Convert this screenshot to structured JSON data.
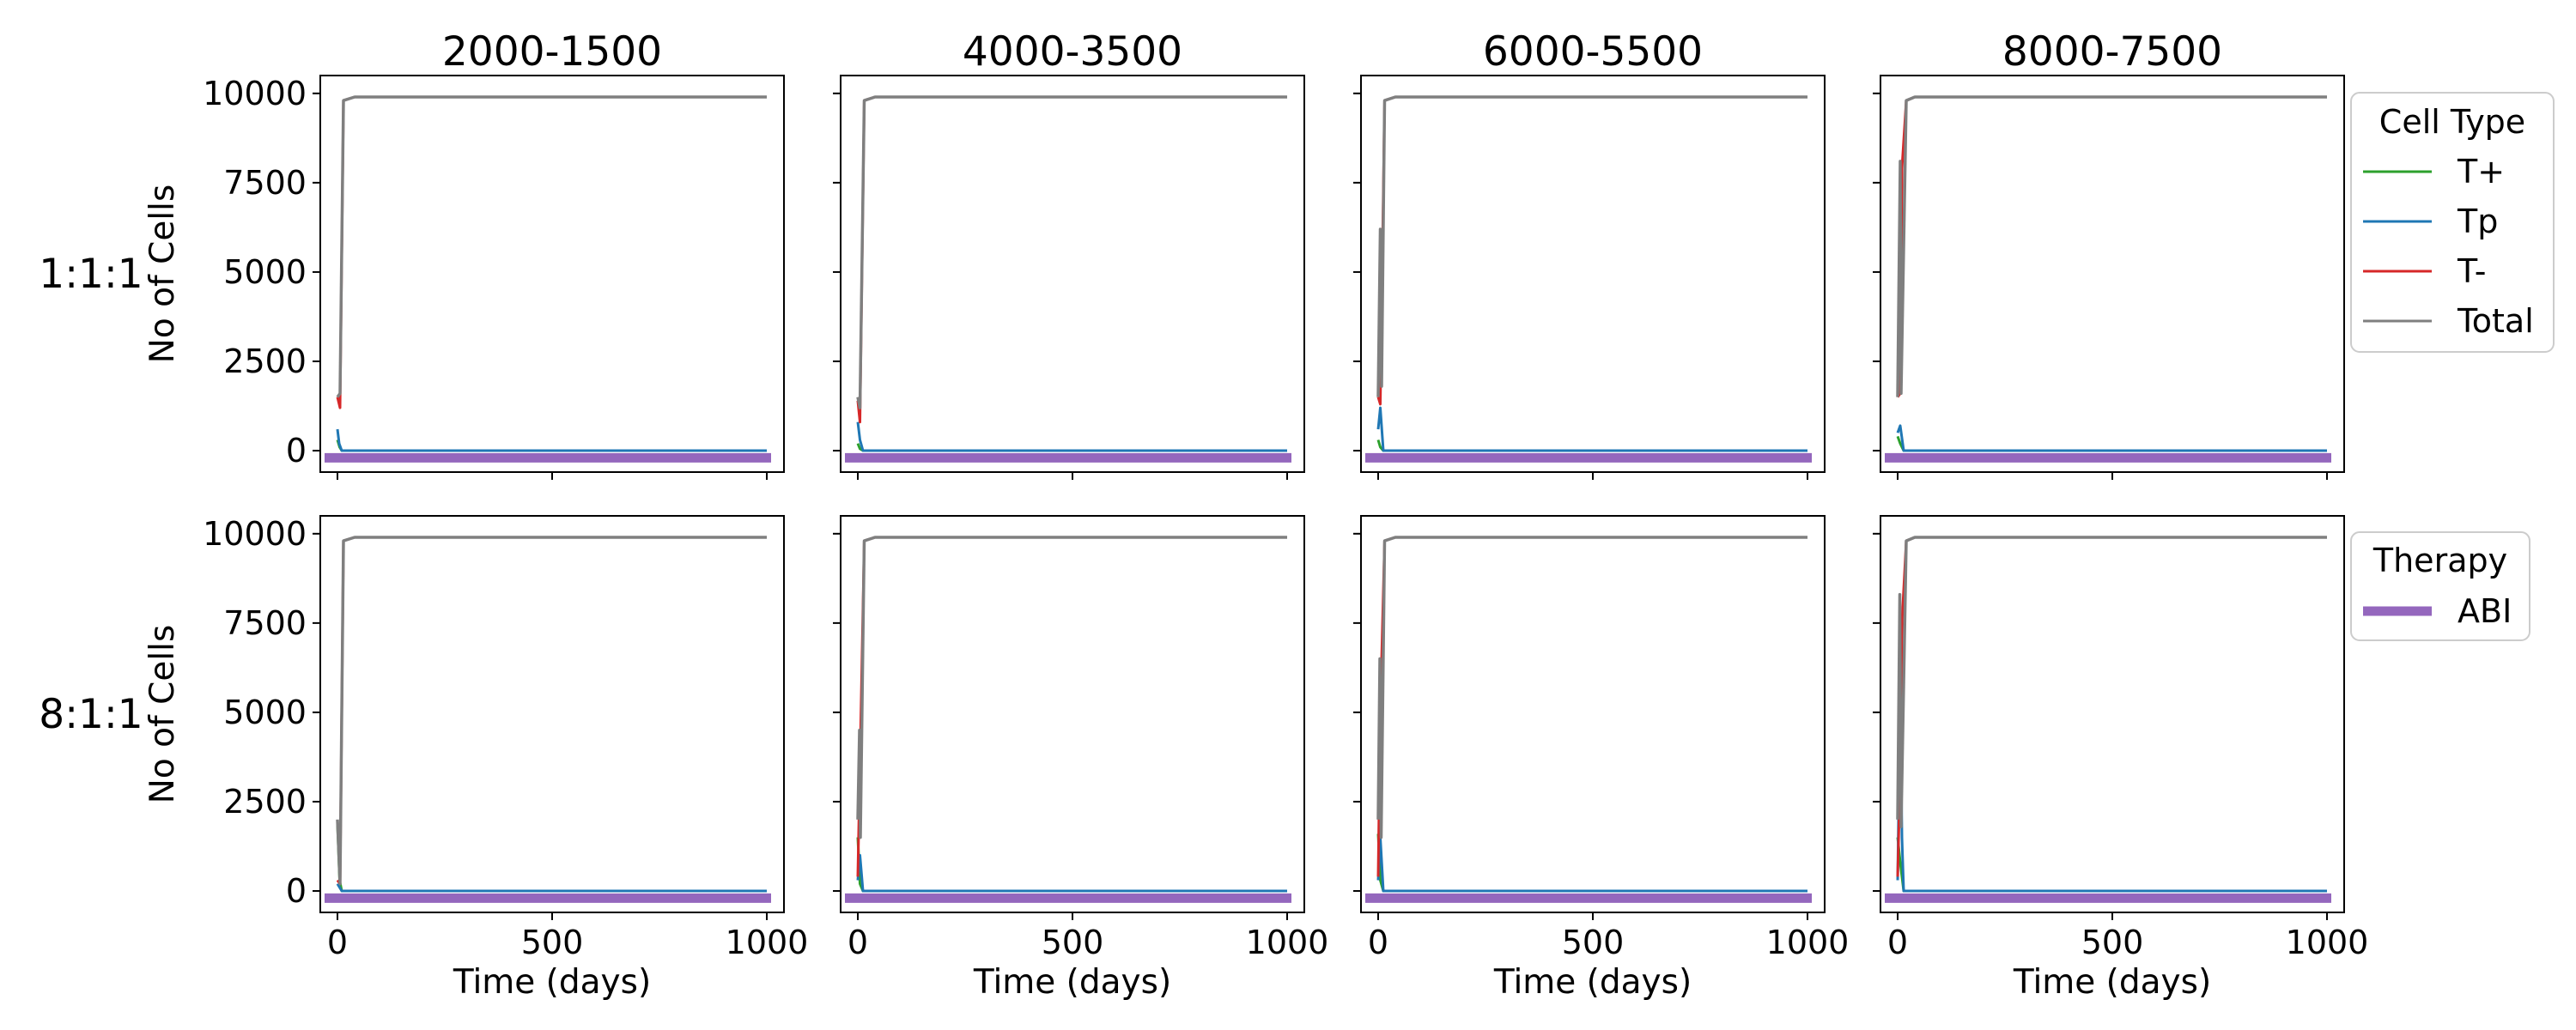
{
  "figure": {
    "column_titles": [
      "2000-1500",
      "4000-3500",
      "6000-5500",
      "8000-7500"
    ],
    "row_labels": [
      "1:1:1",
      "8:1:1"
    ],
    "xlabel": "Time (days)",
    "ylabel": "No of Cells"
  },
  "legends": {
    "cell_type": {
      "title": "Cell Type",
      "entries": [
        {
          "label": "T+",
          "color": "#2ca02c"
        },
        {
          "label": "Tp",
          "color": "#1f77b4"
        },
        {
          "label": "T-",
          "color": "#d62728"
        },
        {
          "label": "Total",
          "color": "#7f7f7f"
        }
      ]
    },
    "therapy": {
      "title": "Therapy",
      "entries": [
        {
          "label": "ABI",
          "color": "#9467bd"
        }
      ]
    }
  },
  "chart_data": {
    "type": "line",
    "grid": false,
    "shared_axes": true,
    "xlim": [
      -40,
      1040
    ],
    "ylim": [
      -600,
      10500
    ],
    "xticks": [
      0,
      500,
      1000
    ],
    "yticks": [
      0,
      2500,
      5000,
      7500,
      10000
    ],
    "therapy_band": {
      "name": "ABI",
      "y": -200,
      "x": [
        -30,
        1010
      ]
    },
    "series_colors": {
      "T+": "#2ca02c",
      "Tp": "#1f77b4",
      "T-": "#d62728",
      "Total": "#7f7f7f"
    },
    "panels": [
      {
        "row": "1:1:1",
        "column": "2000-1500",
        "series": {
          "T+": [
            [
              0,
              300
            ],
            [
              5,
              100
            ],
            [
              10,
              0
            ],
            [
              1000,
              0
            ]
          ],
          "Tp": [
            [
              0,
              600
            ],
            [
              4,
              200
            ],
            [
              10,
              0
            ],
            [
              1000,
              0
            ]
          ],
          "T-": [
            [
              0,
              1500
            ],
            [
              6,
              1200
            ],
            [
              14,
              9800
            ],
            [
              40,
              9900
            ],
            [
              1000,
              9900
            ]
          ],
          "Total": [
            [
              0,
              1500
            ],
            [
              6,
              1600
            ],
            [
              14,
              9800
            ],
            [
              40,
              9900
            ],
            [
              1000,
              9900
            ]
          ]
        }
      },
      {
        "row": "1:1:1",
        "column": "4000-3500",
        "series": {
          "T+": [
            [
              0,
              200
            ],
            [
              5,
              50
            ],
            [
              12,
              0
            ],
            [
              1000,
              0
            ]
          ],
          "Tp": [
            [
              0,
              800
            ],
            [
              5,
              300
            ],
            [
              12,
              0
            ],
            [
              1000,
              0
            ]
          ],
          "T-": [
            [
              0,
              1400
            ],
            [
              5,
              800
            ],
            [
              15,
              9800
            ],
            [
              40,
              9900
            ],
            [
              1000,
              9900
            ]
          ],
          "Total": [
            [
              0,
              1500
            ],
            [
              5,
              1200
            ],
            [
              15,
              9800
            ],
            [
              40,
              9900
            ],
            [
              1000,
              9900
            ]
          ]
        }
      },
      {
        "row": "1:1:1",
        "column": "6000-5500",
        "series": {
          "T+": [
            [
              0,
              300
            ],
            [
              5,
              100
            ],
            [
              12,
              0
            ],
            [
              1000,
              0
            ]
          ],
          "Tp": [
            [
              0,
              600
            ],
            [
              5,
              1200
            ],
            [
              12,
              0
            ],
            [
              1000,
              0
            ]
          ],
          "T-": [
            [
              0,
              1500
            ],
            [
              5,
              1300
            ],
            [
              15,
              9800
            ],
            [
              40,
              9900
            ],
            [
              1000,
              9900
            ]
          ],
          "Total": [
            [
              0,
              1500
            ],
            [
              5,
              6200
            ],
            [
              8,
              1800
            ],
            [
              15,
              9800
            ],
            [
              40,
              9900
            ],
            [
              1000,
              9900
            ]
          ]
        }
      },
      {
        "row": "1:1:1",
        "column": "8000-7500",
        "series": {
          "T+": [
            [
              0,
              400
            ],
            [
              6,
              200
            ],
            [
              14,
              0
            ],
            [
              1000,
              0
            ]
          ],
          "Tp": [
            [
              0,
              500
            ],
            [
              6,
              700
            ],
            [
              14,
              0
            ],
            [
              1000,
              0
            ]
          ],
          "T-": [
            [
              0,
              1500
            ],
            [
              6,
              1600
            ],
            [
              10,
              7900
            ],
            [
              20,
              9800
            ],
            [
              40,
              9900
            ],
            [
              1000,
              9900
            ]
          ],
          "Total": [
            [
              0,
              1500
            ],
            [
              6,
              8100
            ],
            [
              8,
              1600
            ],
            [
              20,
              9800
            ],
            [
              40,
              9900
            ],
            [
              1000,
              9900
            ]
          ]
        }
      },
      {
        "row": "8:1:1",
        "column": "2000-1500",
        "series": {
          "T+": [
            [
              0,
              1900
            ],
            [
              5,
              300
            ],
            [
              10,
              0
            ],
            [
              1000,
              0
            ]
          ],
          "Tp": [
            [
              0,
              200
            ],
            [
              5,
              100
            ],
            [
              10,
              0
            ],
            [
              1000,
              0
            ]
          ],
          "T-": [
            [
              0,
              300
            ],
            [
              6,
              200
            ],
            [
              14,
              9800
            ],
            [
              40,
              9900
            ],
            [
              1000,
              9900
            ]
          ],
          "Total": [
            [
              0,
              2000
            ],
            [
              6,
              200
            ],
            [
              14,
              9800
            ],
            [
              40,
              9900
            ],
            [
              1000,
              9900
            ]
          ]
        }
      },
      {
        "row": "8:1:1",
        "column": "4000-3500",
        "series": {
          "T+": [
            [
              0,
              1500
            ],
            [
              5,
              200
            ],
            [
              12,
              0
            ],
            [
              1000,
              0
            ]
          ],
          "Tp": [
            [
              0,
              300
            ],
            [
              5,
              1000
            ],
            [
              12,
              0
            ],
            [
              1000,
              0
            ]
          ],
          "T-": [
            [
              0,
              400
            ],
            [
              5,
              3500
            ],
            [
              15,
              9800
            ],
            [
              40,
              9900
            ],
            [
              1000,
              9900
            ]
          ],
          "Total": [
            [
              0,
              2000
            ],
            [
              4,
              4500
            ],
            [
              6,
              1500
            ],
            [
              15,
              9800
            ],
            [
              40,
              9900
            ],
            [
              1000,
              9900
            ]
          ]
        }
      },
      {
        "row": "8:1:1",
        "column": "6000-5500",
        "series": {
          "T+": [
            [
              0,
              1600
            ],
            [
              5,
              300
            ],
            [
              12,
              0
            ],
            [
              1000,
              0
            ]
          ],
          "Tp": [
            [
              0,
              300
            ],
            [
              5,
              1500
            ],
            [
              12,
              0
            ],
            [
              1000,
              0
            ]
          ],
          "T-": [
            [
              0,
              400
            ],
            [
              5,
              5000
            ],
            [
              15,
              9800
            ],
            [
              40,
              9900
            ],
            [
              1000,
              9900
            ]
          ],
          "Total": [
            [
              0,
              2000
            ],
            [
              4,
              6500
            ],
            [
              7,
              1500
            ],
            [
              15,
              9800
            ],
            [
              40,
              9900
            ],
            [
              1000,
              9900
            ]
          ]
        }
      },
      {
        "row": "8:1:1",
        "column": "8000-7500",
        "series": {
          "T+": [
            [
              0,
              1500
            ],
            [
              6,
              800
            ],
            [
              14,
              0
            ],
            [
              1000,
              0
            ]
          ],
          "Tp": [
            [
              0,
              300
            ],
            [
              6,
              5600
            ],
            [
              10,
              1500
            ],
            [
              14,
              0
            ],
            [
              1000,
              0
            ]
          ],
          "T-": [
            [
              0,
              400
            ],
            [
              6,
              3300
            ],
            [
              10,
              7500
            ],
            [
              20,
              9800
            ],
            [
              40,
              9900
            ],
            [
              1000,
              9900
            ]
          ],
          "Total": [
            [
              0,
              2000
            ],
            [
              5,
              8300
            ],
            [
              8,
              1800
            ],
            [
              20,
              9800
            ],
            [
              40,
              9900
            ],
            [
              1000,
              9900
            ]
          ]
        }
      }
    ]
  }
}
